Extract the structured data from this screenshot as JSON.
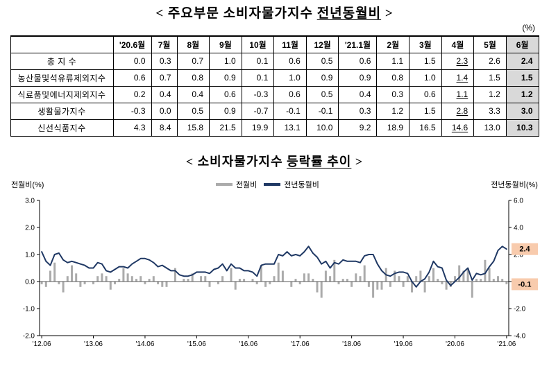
{
  "header": {
    "title_prefix": "< 주요부문 소비자물가지수 ",
    "title_emph": "전년동월비",
    "title_suffix": " >",
    "unit": "(%)"
  },
  "table": {
    "columns": [
      "'20.6월",
      "7월",
      "8월",
      "9월",
      "10월",
      "11월",
      "12월",
      "'21.1월",
      "2월",
      "3월",
      "4월",
      "5월",
      "6월"
    ],
    "highlight_col": 12,
    "underline_col": 10,
    "rows": [
      {
        "label": "총 지 수",
        "values": [
          "0.0",
          "0.3",
          "0.7",
          "1.0",
          "0.1",
          "0.6",
          "0.5",
          "0.6",
          "1.1",
          "1.5",
          "2.3",
          "2.6",
          "2.4"
        ]
      },
      {
        "label": "농산물및석유류제외지수",
        "values": [
          "0.6",
          "0.7",
          "0.8",
          "0.9",
          "0.1",
          "1.0",
          "0.9",
          "0.9",
          "0.8",
          "1.0",
          "1.4",
          "1.5",
          "1.5"
        ]
      },
      {
        "label": "식료품및에너지제외지수",
        "values": [
          "0.2",
          "0.4",
          "0.4",
          "0.6",
          "-0.3",
          "0.6",
          "0.5",
          "0.4",
          "0.3",
          "0.6",
          "1.1",
          "1.2",
          "1.2"
        ]
      },
      {
        "label": "생활물가지수",
        "values": [
          "-0.3",
          "0.0",
          "0.5",
          "0.9",
          "-0.7",
          "-0.1",
          "-0.1",
          "0.3",
          "1.2",
          "1.5",
          "2.8",
          "3.3",
          "3.0"
        ]
      },
      {
        "label": "신선식품지수",
        "values": [
          "4.3",
          "8.4",
          "15.8",
          "21.5",
          "19.9",
          "13.1",
          "10.0",
          "9.2",
          "18.9",
          "16.5",
          "14.6",
          "13.0",
          "10.3"
        ]
      }
    ]
  },
  "chart": {
    "title_prefix": "< 소비자물가지수 ",
    "title_emph": "등락률 추이",
    "title_suffix": " >",
    "left_axis_title": "전월비(%)",
    "right_axis_title": "전년동월비(%)",
    "left_tick_labels": [
      "3.0",
      "2.0",
      "1.0",
      "0.0",
      "-1.0",
      "-2.0"
    ],
    "right_tick_labels": [
      "6.0",
      "4.0",
      "2.0",
      "0.0",
      "-2.0",
      "-4.0"
    ],
    "annotation_bg": "#f8cbad",
    "annotations": [
      {
        "text": "2.4",
        "value": 2.4,
        "axis": "right"
      },
      {
        "text": "-0.1",
        "value": -0.1,
        "axis": "left"
      }
    ]
  },
  "chart_data": {
    "type": "bar+line",
    "title": "소비자물가지수 등락률 추이",
    "x_tick_labels": [
      "'12.06",
      "'13.06",
      "'14.06",
      "'15.06",
      "'16.06",
      "'17.06",
      "'18.06",
      "'19.06",
      "'20.06",
      "'21.06"
    ],
    "x_tick_every_n_points": 12,
    "left_ylim": [
      -2.0,
      3.0
    ],
    "right_ylim": [
      -4.0,
      6.0
    ],
    "grid": false,
    "legend_position": "top-center",
    "series": [
      {
        "name": "전월비",
        "type": "bar",
        "axis": "left",
        "color": "#ababab",
        "values": [
          -0.1,
          -0.2,
          0.4,
          0.7,
          -0.1,
          -0.4,
          0.2,
          0.6,
          0.3,
          -0.2,
          -0.1,
          0.0,
          -0.1,
          0.2,
          0.3,
          0.2,
          -0.3,
          -0.1,
          0.1,
          0.5,
          0.3,
          0.2,
          0.1,
          0.2,
          -0.1,
          0.1,
          0.2,
          -0.1,
          -0.2,
          -0.2,
          0.0,
          0.5,
          0.0,
          0.1,
          0.1,
          0.3,
          0.0,
          0.2,
          0.2,
          -0.2,
          0.0,
          -0.1,
          0.2,
          0.0,
          0.5,
          -0.3,
          0.1,
          0.1,
          0.0,
          0.1,
          -0.1,
          0.6,
          -0.2,
          -0.1,
          0.2,
          0.7,
          0.4,
          0.0,
          -0.2,
          0.1,
          -0.1,
          0.3,
          0.3,
          0.1,
          -0.4,
          -0.6,
          0.4,
          0.2,
          0.8,
          -0.1,
          0.1,
          0.1,
          -0.2,
          0.3,
          0.2,
          0.6,
          -0.2,
          -0.6,
          -0.3,
          -0.3,
          0.5,
          -0.2,
          0.4,
          0.2,
          -0.2,
          0.2,
          -0.4,
          0.2,
          0.4,
          -0.4,
          0.2,
          0.5,
          0.1,
          -0.1,
          -0.3,
          -0.2,
          0.2,
          0.6,
          0.4,
          0.5,
          -0.6,
          0.1,
          0.1,
          0.8,
          0.5,
          0.1,
          0.2,
          0.1,
          -0.1
        ]
      },
      {
        "name": "전년동월비",
        "type": "line",
        "axis": "right",
        "color": "#1f3864",
        "values": [
          2.2,
          1.5,
          1.2,
          2.0,
          2.1,
          1.6,
          1.4,
          1.5,
          1.4,
          1.3,
          1.2,
          1.0,
          1.0,
          1.4,
          1.3,
          0.8,
          0.7,
          0.9,
          1.1,
          1.1,
          1.0,
          1.3,
          1.5,
          1.7,
          1.7,
          1.6,
          1.4,
          1.1,
          1.2,
          1.0,
          0.8,
          0.8,
          0.5,
          0.4,
          0.4,
          0.5,
          0.7,
          0.7,
          0.7,
          0.6,
          0.9,
          1.0,
          1.3,
          0.8,
          1.3,
          1.0,
          1.0,
          0.8,
          0.8,
          0.7,
          0.4,
          1.2,
          1.3,
          1.3,
          1.3,
          2.0,
          1.9,
          2.2,
          1.9,
          2.0,
          1.9,
          2.2,
          2.6,
          2.1,
          1.8,
          1.3,
          1.5,
          1.0,
          1.4,
          1.3,
          1.6,
          1.5,
          1.5,
          1.5,
          1.4,
          1.9,
          2.0,
          2.0,
          1.3,
          0.8,
          0.5,
          0.4,
          0.6,
          0.7,
          0.7,
          0.6,
          0.0,
          -0.4,
          0.0,
          0.2,
          0.7,
          1.5,
          1.1,
          1.0,
          0.1,
          -0.3,
          0.0,
          0.3,
          0.7,
          1.0,
          0.1,
          0.6,
          0.5,
          0.6,
          1.1,
          1.5,
          2.3,
          2.6,
          2.4
        ]
      }
    ]
  }
}
